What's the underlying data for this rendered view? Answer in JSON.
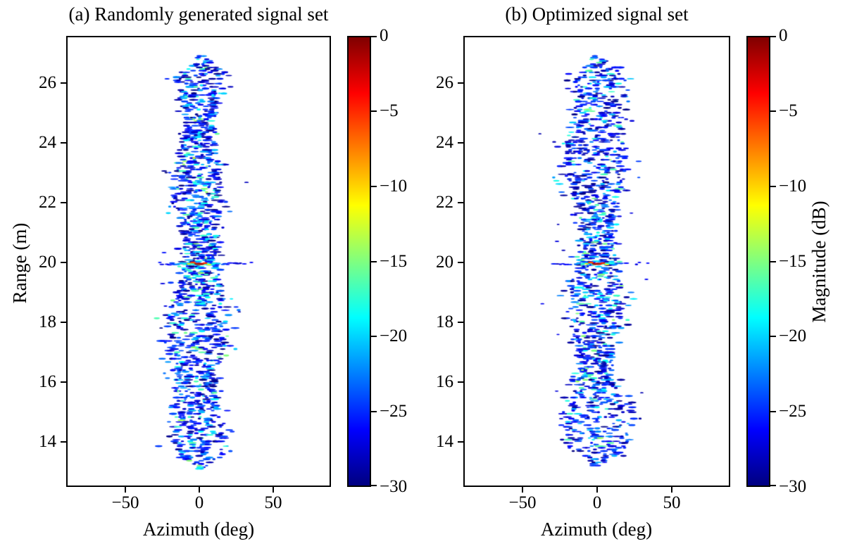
{
  "figure": {
    "background": "#ffffff",
    "panels": [
      {
        "key": "a",
        "title": "(a) Randomly generated signal set",
        "xlabel": "Azimuth (deg)",
        "ylabel": "Range (m)",
        "x_ticks": [
          {
            "v": -50,
            "label": "−50"
          },
          {
            "v": 0,
            "label": "0"
          },
          {
            "v": 50,
            "label": "50"
          }
        ],
        "y_ticks": [
          {
            "v": 26,
            "label": "26"
          },
          {
            "v": 24,
            "label": "24"
          },
          {
            "v": 22,
            "label": "22"
          },
          {
            "v": 20,
            "label": "20"
          },
          {
            "v": 18,
            "label": "18"
          },
          {
            "v": 16,
            "label": "16"
          },
          {
            "v": 14,
            "label": "14"
          }
        ],
        "colorbar_ticks": [
          {
            "v": 0,
            "label": "0"
          },
          {
            "v": -5,
            "label": "−5"
          },
          {
            "v": -10,
            "label": "−10"
          },
          {
            "v": -15,
            "label": "−15"
          },
          {
            "v": -20,
            "label": "−20"
          },
          {
            "v": -25,
            "label": "−25"
          },
          {
            "v": -30,
            "label": "−30"
          }
        ],
        "colorbar_label": null
      },
      {
        "key": "b",
        "title": "(b) Optimized signal set",
        "xlabel": "Azimuth (deg)",
        "ylabel": null,
        "x_ticks": [
          {
            "v": -50,
            "label": "−50"
          },
          {
            "v": 0,
            "label": "0"
          },
          {
            "v": 50,
            "label": "50"
          }
        ],
        "y_ticks": [
          {
            "v": 26,
            "label": "26"
          },
          {
            "v": 24,
            "label": "24"
          },
          {
            "v": 22,
            "label": "22"
          },
          {
            "v": 20,
            "label": "20"
          },
          {
            "v": 18,
            "label": "18"
          },
          {
            "v": 16,
            "label": "16"
          },
          {
            "v": 14,
            "label": "14"
          }
        ],
        "colorbar_ticks": [
          {
            "v": 0,
            "label": "0"
          },
          {
            "v": -5,
            "label": "−5"
          },
          {
            "v": -10,
            "label": "−10"
          },
          {
            "v": -15,
            "label": "−15"
          },
          {
            "v": -20,
            "label": "−20"
          },
          {
            "v": -25,
            "label": "−25"
          },
          {
            "v": -30,
            "label": "−30"
          }
        ],
        "colorbar_label": "Magnitude (dB)"
      }
    ]
  },
  "colors": {
    "frame": "#000000",
    "text": "#000000",
    "background": "#ffffff",
    "colormap_name": "jet",
    "jet_stops": [
      [
        "0%",
        "#800000"
      ],
      [
        "12.5%",
        "#ff0000"
      ],
      [
        "37.5%",
        "#ffff00"
      ],
      [
        "62.5%",
        "#00ffff"
      ],
      [
        "87.5%",
        "#0000ff"
      ],
      [
        "100%",
        "#000080"
      ]
    ]
  },
  "chart_data": [
    {
      "type": "heatmap",
      "title": "(a) Randomly generated signal set",
      "xlabel": "Azimuth (deg)",
      "ylabel": "Range (m)",
      "xlim": [
        -90,
        90
      ],
      "ylim": [
        12.5,
        27.7
      ],
      "x_ticks": [
        -50,
        0,
        50
      ],
      "y_ticks": [
        26,
        24,
        22,
        20,
        18,
        16,
        14
      ],
      "colorbar": {
        "label": "Magnitude (dB)",
        "ticks": [
          0,
          -5,
          -10,
          -15,
          -20,
          -25,
          -30
        ],
        "clim": [
          -30,
          0
        ],
        "colormap": "jet"
      },
      "content": {
        "description": "SAR-style speckled magnitude image: a ragged vertical noise band centered at 0 deg azimuth spanning ranges ~13-27 m, mostly -30 to -22 dB (blue) with scattered -22 to -15 dB patches (cyan/green); a bright point target at (0 deg, 20 m) near 0 dB (red/orange core) with a horizontal azimuth sidelobe line at 20 m; background below -30 dB rendered white.",
        "band": {
          "azimuth_center_deg": 0,
          "azimuth_halfwidth_deg": 8,
          "range_span_m": [
            13.1,
            26.9
          ],
          "wavy": true
        },
        "point_target": {
          "azimuth_deg": 0,
          "range_m": 20,
          "peak_db": 0
        },
        "sidelobe_line": {
          "range_m": 20,
          "azimuth_extent_deg": [
            -27,
            28
          ],
          "level_db_range": [
            -30,
            -16
          ]
        },
        "secondary_bright_patch": {
          "azimuth_deg": 0,
          "range_m": 19.6,
          "level_db": -15
        }
      }
    },
    {
      "type": "heatmap",
      "title": "(b) Optimized signal set",
      "xlabel": "Azimuth (deg)",
      "ylabel": "Range (m)",
      "xlim": [
        -90,
        90
      ],
      "ylim": [
        12.5,
        27.7
      ],
      "x_ticks": [
        -50,
        0,
        50
      ],
      "y_ticks": [
        26,
        24,
        22,
        20,
        18,
        16,
        14
      ],
      "colorbar": {
        "label": "Magnitude (dB)",
        "ticks": [
          0,
          -5,
          -10,
          -15,
          -20,
          -25,
          -30
        ],
        "clim": [
          -30,
          0
        ],
        "colormap": "jet"
      },
      "content": {
        "description": "Same scene with optimized signal set: straighter, more uniform vertical speckle band centered at 0 deg azimuth over ranges ~13-27 m, mostly -30 to -22 dB (blue); bright point target at (0 deg, 20 m) near 0 dB with horizontal sidelobe line at 20 m; background below -30 dB rendered white.",
        "band": {
          "azimuth_center_deg": 0,
          "azimuth_halfwidth_deg": 8.2,
          "range_span_m": [
            13.2,
            26.9
          ],
          "wavy": false
        },
        "point_target": {
          "azimuth_deg": 0,
          "range_m": 20,
          "peak_db": 0
        },
        "sidelobe_line": {
          "range_m": 20,
          "azimuth_extent_deg": [
            -28,
            28
          ],
          "level_db_range": [
            -30,
            -16
          ]
        },
        "secondary_bright_patch": {
          "azimuth_deg": 0,
          "range_m": 19.55,
          "level_db": -16
        }
      }
    }
  ]
}
